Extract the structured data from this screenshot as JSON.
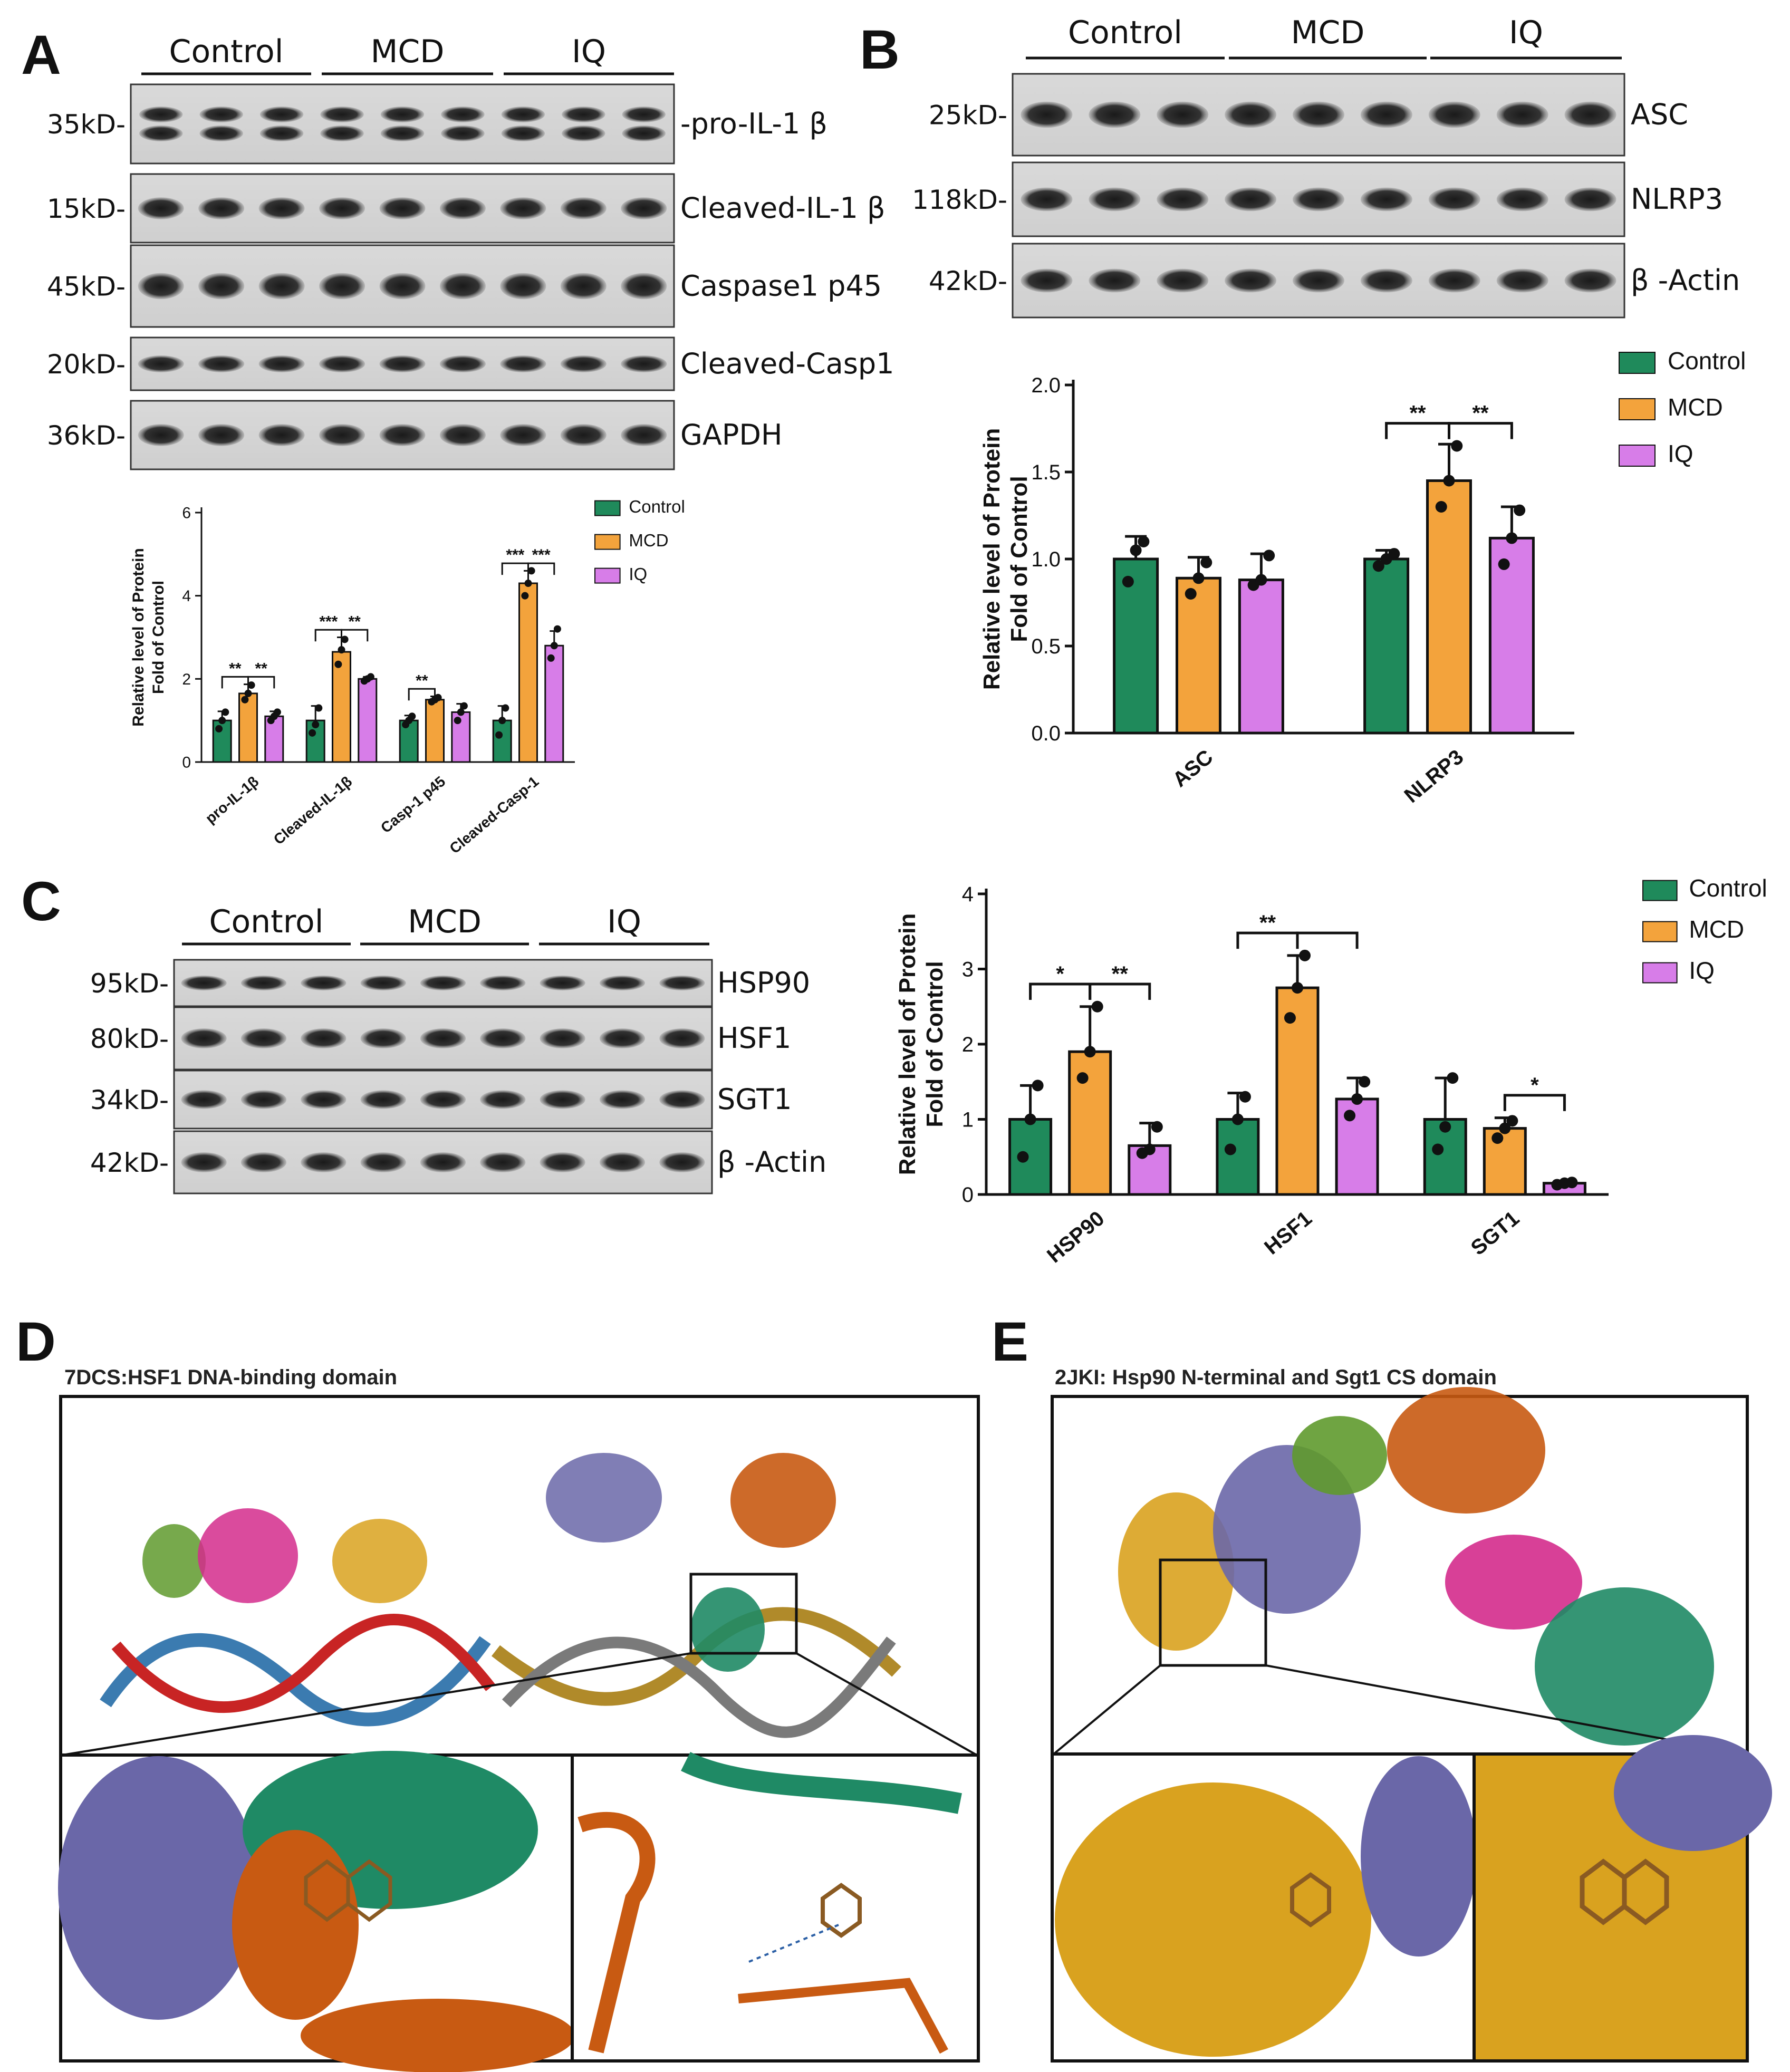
{
  "colors": {
    "control": "#1f8a5b",
    "mcd": "#f3a33c",
    "iq": "#d77de8",
    "orange_struct": "#c85a12",
    "teal_struct": "#1f8a65",
    "purple_struct": "#6a67a8",
    "gold_struct": "#d9a21f"
  },
  "panelA": {
    "letter": "A",
    "groups": [
      "Control",
      "MCD",
      "IQ"
    ],
    "blots": [
      {
        "mw": "35kD-",
        "label": "-pro-IL-1 β"
      },
      {
        "mw": "15kD-",
        "label": "Cleaved-IL-1 β"
      },
      {
        "mw": "45kD-",
        "label": "Caspase1 p45"
      },
      {
        "mw": "20kD-",
        "label": "Cleaved-Casp1"
      },
      {
        "mw": "36kD-",
        "label": "GAPDH"
      }
    ],
    "chart": {
      "ylabel1": "Relative level of Protein",
      "ylabel2": "Fold of Control",
      "ticks": [
        "0",
        "2",
        "4",
        "6"
      ],
      "legend": [
        "Control",
        "MCD",
        "IQ"
      ]
    }
  },
  "panelB": {
    "letter": "B",
    "groups": [
      "Control",
      "MCD",
      "IQ"
    ],
    "blots": [
      {
        "mw": "25kD-",
        "label": "ASC"
      },
      {
        "mw": "118kD-",
        "label": "NLRP3"
      },
      {
        "mw": "42kD-",
        "label": "β -Actin"
      }
    ],
    "chart": {
      "ylabel1": "Relative level of Protein",
      "ylabel2": "Fold of Control",
      "ticks": [
        "0.0",
        "0.5",
        "1.0",
        "1.5",
        "2.0"
      ],
      "legend": [
        "Control",
        "MCD",
        "IQ"
      ]
    }
  },
  "panelC": {
    "letter": "C",
    "groups": [
      "Control",
      "MCD",
      "IQ"
    ],
    "blots": [
      {
        "mw": "95kD-",
        "label": "HSP90"
      },
      {
        "mw": "80kD-",
        "label": "HSF1"
      },
      {
        "mw": "34kD-",
        "label": "SGT1"
      },
      {
        "mw": "42kD-",
        "label": "β -Actin"
      }
    ],
    "chart": {
      "ylabel1": "Relative level of Protein",
      "ylabel2": "Fold of Control",
      "ticks": [
        "0",
        "1",
        "2",
        "3",
        "4"
      ],
      "legend": [
        "Control",
        "MCD",
        "IQ"
      ]
    }
  },
  "panelD": {
    "letter": "D",
    "title": "7DCS:HSF1 DNA-binding domain"
  },
  "panelE": {
    "letter": "E",
    "title": "2JKI: Hsp90 N-terminal and Sgt1 CS domain"
  },
  "chart_data": [
    {
      "type": "bar",
      "panel": "A",
      "categories": [
        "pro-IL-1β",
        "Cleaved-IL-1β",
        "Casp-1 p45",
        "Cleaved-Casp-1"
      ],
      "ylim": [
        0,
        6
      ],
      "legend_position": "right",
      "series": [
        {
          "name": "Control",
          "values": [
            1.0,
            1.0,
            1.0,
            1.0
          ],
          "errors": [
            0.22,
            0.35,
            0.12,
            0.35
          ],
          "points": [
            [
              0.8,
              1.0,
              1.2
            ],
            [
              0.7,
              0.9,
              1.3
            ],
            [
              0.9,
              1.0,
              1.1
            ],
            [
              0.65,
              1.0,
              1.3
            ]
          ]
        },
        {
          "name": "MCD",
          "values": [
            1.65,
            2.65,
            1.5,
            4.3
          ],
          "errors": [
            0.22,
            0.35,
            0.08,
            0.3
          ],
          "points": [
            [
              1.5,
              1.65,
              1.85
            ],
            [
              2.35,
              2.7,
              2.95
            ],
            [
              1.45,
              1.5,
              1.55
            ],
            [
              4.0,
              4.3,
              4.6
            ]
          ]
        },
        {
          "name": "IQ",
          "values": [
            1.1,
            2.0,
            1.2,
            2.8
          ],
          "errors": [
            0.12,
            0.05,
            0.2,
            0.35
          ],
          "points": [
            [
              1.0,
              1.1,
              1.2
            ],
            [
              1.95,
              2.0,
              2.05
            ],
            [
              1.0,
              1.2,
              1.35
            ],
            [
              2.5,
              2.8,
              3.2
            ]
          ]
        }
      ],
      "significance": [
        {
          "category": 0,
          "pair": [
            "Control",
            "MCD"
          ],
          "label": "**"
        },
        {
          "category": 0,
          "pair": [
            "MCD",
            "IQ"
          ],
          "label": "**"
        },
        {
          "category": 1,
          "pair": [
            "Control",
            "MCD"
          ],
          "label": "***"
        },
        {
          "category": 1,
          "pair": [
            "MCD",
            "IQ"
          ],
          "label": "**"
        },
        {
          "category": 2,
          "pair": [
            "Control",
            "MCD"
          ],
          "label": "**"
        },
        {
          "category": 3,
          "pair": [
            "Control",
            "MCD"
          ],
          "label": "***"
        },
        {
          "category": 3,
          "pair": [
            "MCD",
            "IQ"
          ],
          "label": "***"
        }
      ]
    },
    {
      "type": "bar",
      "panel": "B",
      "categories": [
        "ASC",
        "NLRP3"
      ],
      "ylim": [
        0,
        2.0
      ],
      "legend_position": "top-right",
      "series": [
        {
          "name": "Control",
          "values": [
            1.0,
            1.0
          ],
          "errors": [
            0.13,
            0.05
          ],
          "points": [
            [
              0.87,
              1.05,
              1.1
            ],
            [
              0.96,
              1.0,
              1.03
            ]
          ]
        },
        {
          "name": "MCD",
          "values": [
            0.89,
            1.45
          ],
          "errors": [
            0.12,
            0.21
          ],
          "points": [
            [
              0.8,
              0.89,
              0.98
            ],
            [
              1.3,
              1.45,
              1.65
            ]
          ]
        },
        {
          "name": "IQ",
          "values": [
            0.88,
            1.12
          ],
          "errors": [
            0.15,
            0.18
          ],
          "points": [
            [
              0.85,
              0.88,
              1.02
            ],
            [
              0.97,
              1.12,
              1.28
            ]
          ]
        }
      ],
      "significance": [
        {
          "category": 1,
          "pair": [
            "Control",
            "MCD"
          ],
          "label": "**"
        },
        {
          "category": 1,
          "pair": [
            "MCD",
            "IQ"
          ],
          "label": "**"
        }
      ]
    },
    {
      "type": "bar",
      "panel": "C",
      "categories": [
        "HSP90",
        "HSF1",
        "SGT1"
      ],
      "ylim": [
        0,
        4
      ],
      "legend_position": "top-right",
      "series": [
        {
          "name": "Control",
          "values": [
            1.0,
            1.0,
            1.0
          ],
          "errors": [
            0.45,
            0.35,
            0.55
          ],
          "points": [
            [
              0.5,
              1.0,
              1.45
            ],
            [
              0.6,
              1.0,
              1.3
            ],
            [
              0.6,
              0.9,
              1.55
            ]
          ]
        },
        {
          "name": "MCD",
          "values": [
            1.9,
            2.75,
            0.88
          ],
          "errors": [
            0.6,
            0.43,
            0.14
          ],
          "points": [
            [
              1.55,
              1.9,
              2.5
            ],
            [
              2.35,
              2.75,
              3.18
            ],
            [
              0.75,
              0.88,
              0.98
            ]
          ]
        },
        {
          "name": "IQ",
          "values": [
            0.65,
            1.27,
            0.15
          ],
          "errors": [
            0.3,
            0.28,
            0.02
          ],
          "points": [
            [
              0.55,
              0.6,
              0.9
            ],
            [
              1.05,
              1.27,
              1.5
            ],
            [
              0.13,
              0.15,
              0.16
            ]
          ]
        }
      ],
      "significance": [
        {
          "category": 0,
          "pair": [
            "Control",
            "MCD"
          ],
          "label": "*"
        },
        {
          "category": 0,
          "pair": [
            "MCD",
            "IQ"
          ],
          "label": "**"
        },
        {
          "category": 1,
          "pair": [
            "Control",
            "MCD"
          ],
          "label": "**"
        },
        {
          "category": 1,
          "pair": [
            "MCD",
            "IQ"
          ],
          "label": ""
        },
        {
          "category": 2,
          "pair": [
            "MCD",
            "IQ"
          ],
          "label": "*"
        }
      ]
    }
  ]
}
